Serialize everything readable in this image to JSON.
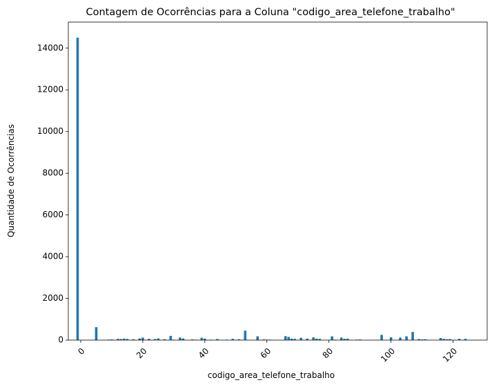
{
  "chart_data": {
    "type": "bar",
    "title": "Contagem de Ocorrências para a Coluna \"codigo_area_telefone_trabalho\"",
    "xlabel": "codigo_area_telefone_trabalho",
    "ylabel": "Quantidade de Ocorrências",
    "xlim": [
      -4,
      131
    ],
    "ylim": [
      0,
      15250
    ],
    "xticks": [
      0,
      20,
      40,
      60,
      80,
      100,
      120
    ],
    "yticks": [
      0,
      2000,
      4000,
      6000,
      8000,
      10000,
      12000,
      14000
    ],
    "grid": false,
    "legend": "none",
    "bar_color": "#1f77b4",
    "x": [
      -1,
      5,
      9,
      10,
      12,
      13,
      14,
      15,
      17,
      19,
      20,
      22,
      24,
      25,
      27,
      29,
      30,
      32,
      33,
      36,
      37,
      39,
      40,
      42,
      44,
      47,
      49,
      51,
      53,
      57,
      59,
      60,
      61,
      66,
      67,
      68,
      69,
      71,
      73,
      75,
      76,
      77,
      81,
      82,
      84,
      85,
      86,
      89,
      90,
      97,
      100,
      103,
      105,
      107,
      109,
      110,
      111,
      116,
      117,
      118,
      119,
      122,
      124
    ],
    "values": [
      14500,
      620,
      25,
      30,
      60,
      50,
      70,
      55,
      40,
      80,
      120,
      60,
      50,
      80,
      40,
      200,
      20,
      120,
      80,
      30,
      20,
      110,
      70,
      20,
      50,
      20,
      60,
      40,
      450,
      180,
      30,
      20,
      20,
      190,
      150,
      70,
      60,
      110,
      70,
      130,
      70,
      60,
      180,
      20,
      120,
      60,
      70,
      25,
      30,
      250,
      140,
      120,
      180,
      390,
      50,
      30,
      40,
      100,
      60,
      40,
      50,
      60,
      60
    ]
  }
}
